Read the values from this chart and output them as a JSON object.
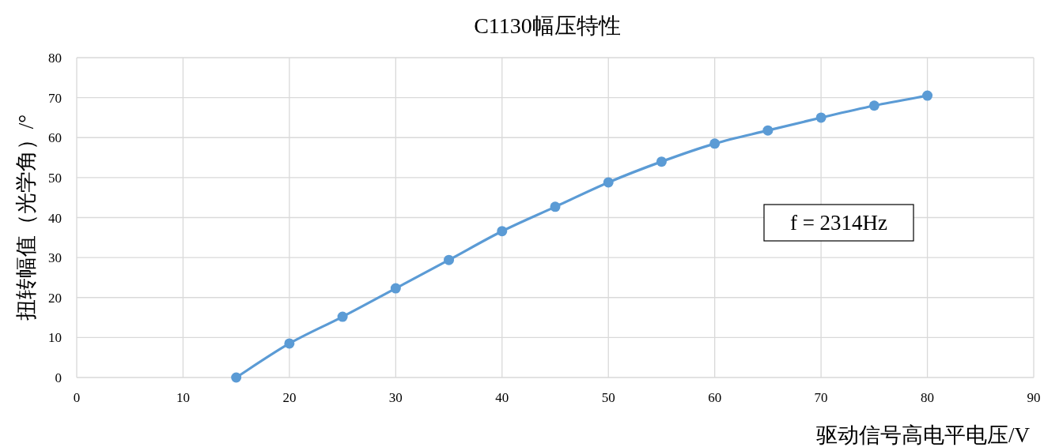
{
  "chart_data": {
    "type": "line",
    "title": "C1130幅压特性",
    "xlabel": "驱动信号高电平电压/V",
    "ylabel": "扭转幅值（光学角）/°",
    "x": [
      15,
      20,
      25,
      30,
      35,
      40,
      45,
      50,
      55,
      60,
      65,
      70,
      75,
      80
    ],
    "series": [
      {
        "color": "#5b9bd5",
        "values": [
          0,
          8.5,
          15.2,
          22.3,
          29.4,
          36.6,
          42.7,
          48.8,
          54.0,
          58.5,
          61.8,
          65.0,
          68.0,
          70.5
        ]
      }
    ],
    "xlim": [
      0,
      90
    ],
    "ylim": [
      0,
      80
    ],
    "xticks": [
      0,
      10,
      20,
      30,
      40,
      50,
      60,
      70,
      80,
      90
    ],
    "yticks": [
      0,
      10,
      20,
      30,
      40,
      50,
      60,
      70,
      80
    ],
    "grid": true,
    "marker": "circle",
    "line_style": "solid",
    "annotations": [
      "f = 2314Hz"
    ]
  }
}
